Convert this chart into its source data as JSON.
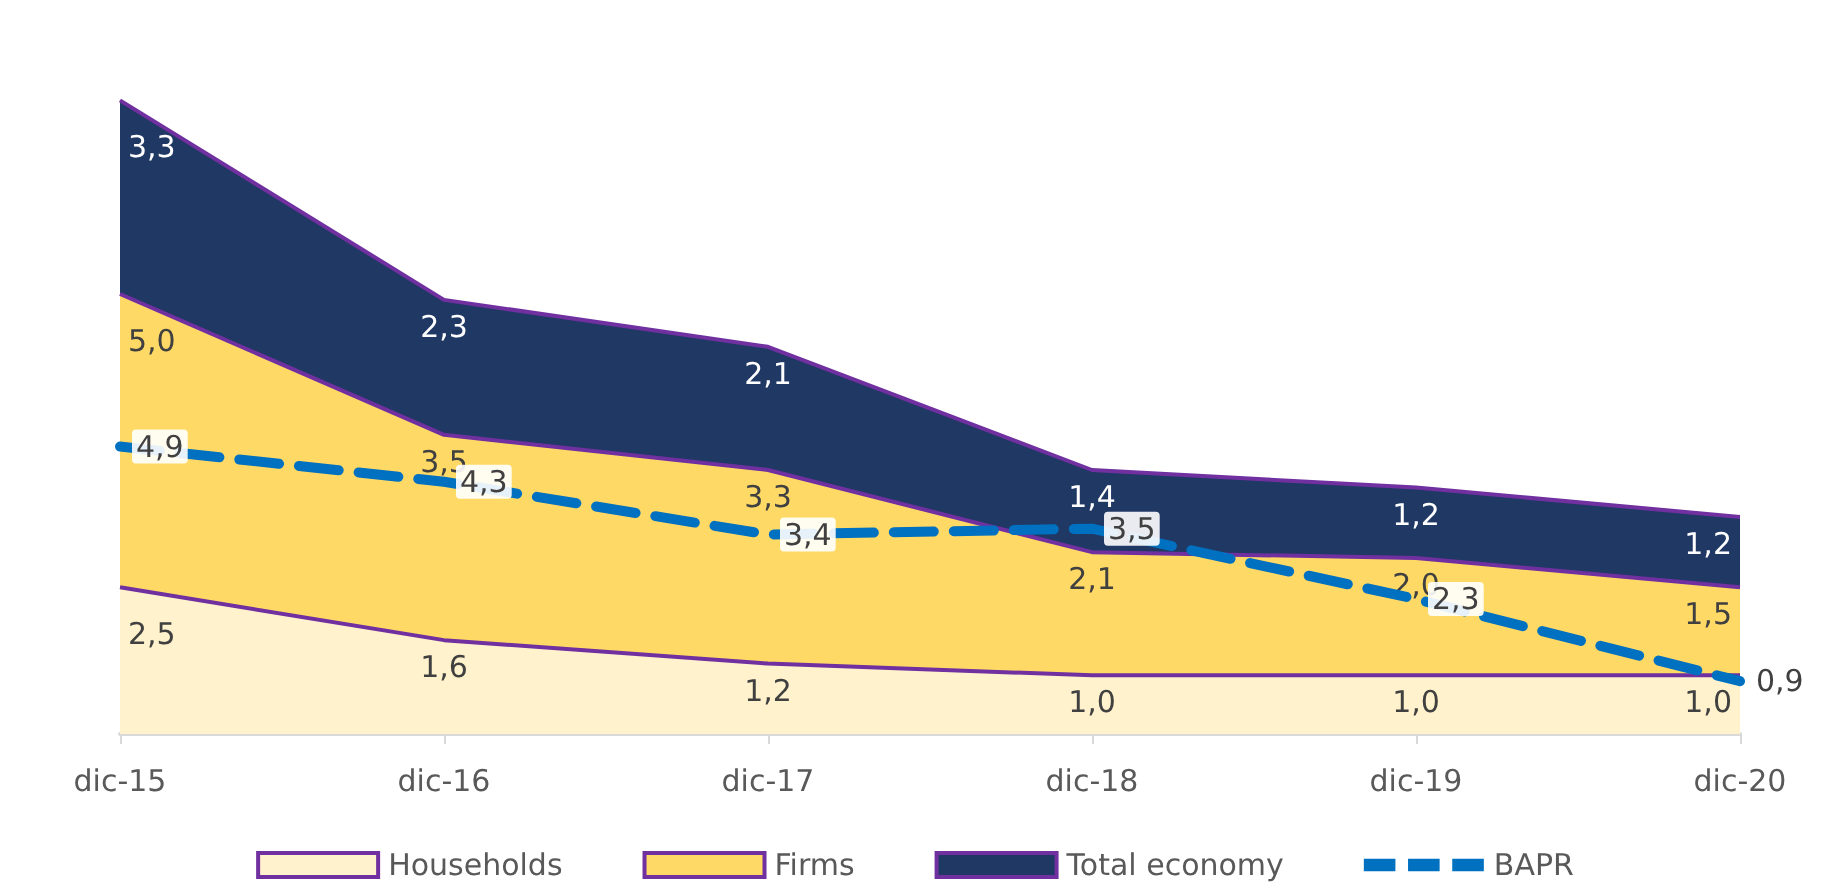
{
  "chart_data": {
    "type": "area",
    "stacked": true,
    "legend": "bottom",
    "data_labels": true,
    "categories": [
      "dic-15",
      "dic-16",
      "dic-17",
      "dic-18",
      "dic-19",
      "dic-20"
    ],
    "series": [
      {
        "name": "Households",
        "color": "#fff2cc",
        "values": [
          2.5,
          1.6,
          1.2,
          1.0,
          1.0,
          1.0
        ],
        "value_labels": [
          "2,5",
          "1,6",
          "1,2",
          "1,0",
          "1,0",
          "1,0"
        ]
      },
      {
        "name": "Firms",
        "color": "#ffd966",
        "values": [
          5.0,
          3.5,
          3.3,
          2.1,
          2.0,
          1.5
        ],
        "value_labels": [
          "5,0",
          "3,5",
          "3,3",
          "2,1",
          "2,0",
          "1,5"
        ]
      },
      {
        "name": "Total economy",
        "color": "#203864",
        "values": [
          3.3,
          2.3,
          2.1,
          1.4,
          1.2,
          1.2
        ],
        "value_labels": [
          "3,3",
          "2,3",
          "2,1",
          "1,4",
          "1,2",
          "1,2"
        ]
      },
      {
        "name": "BAPR",
        "type": "line",
        "line_style": "dashed",
        "color": "#0070c0",
        "values": [
          4.9,
          4.3,
          3.4,
          3.5,
          2.3,
          0.9
        ],
        "value_labels": [
          "4,9",
          "4,3",
          "3,4",
          "3,5",
          "2,3",
          "0,9"
        ]
      }
    ]
  }
}
